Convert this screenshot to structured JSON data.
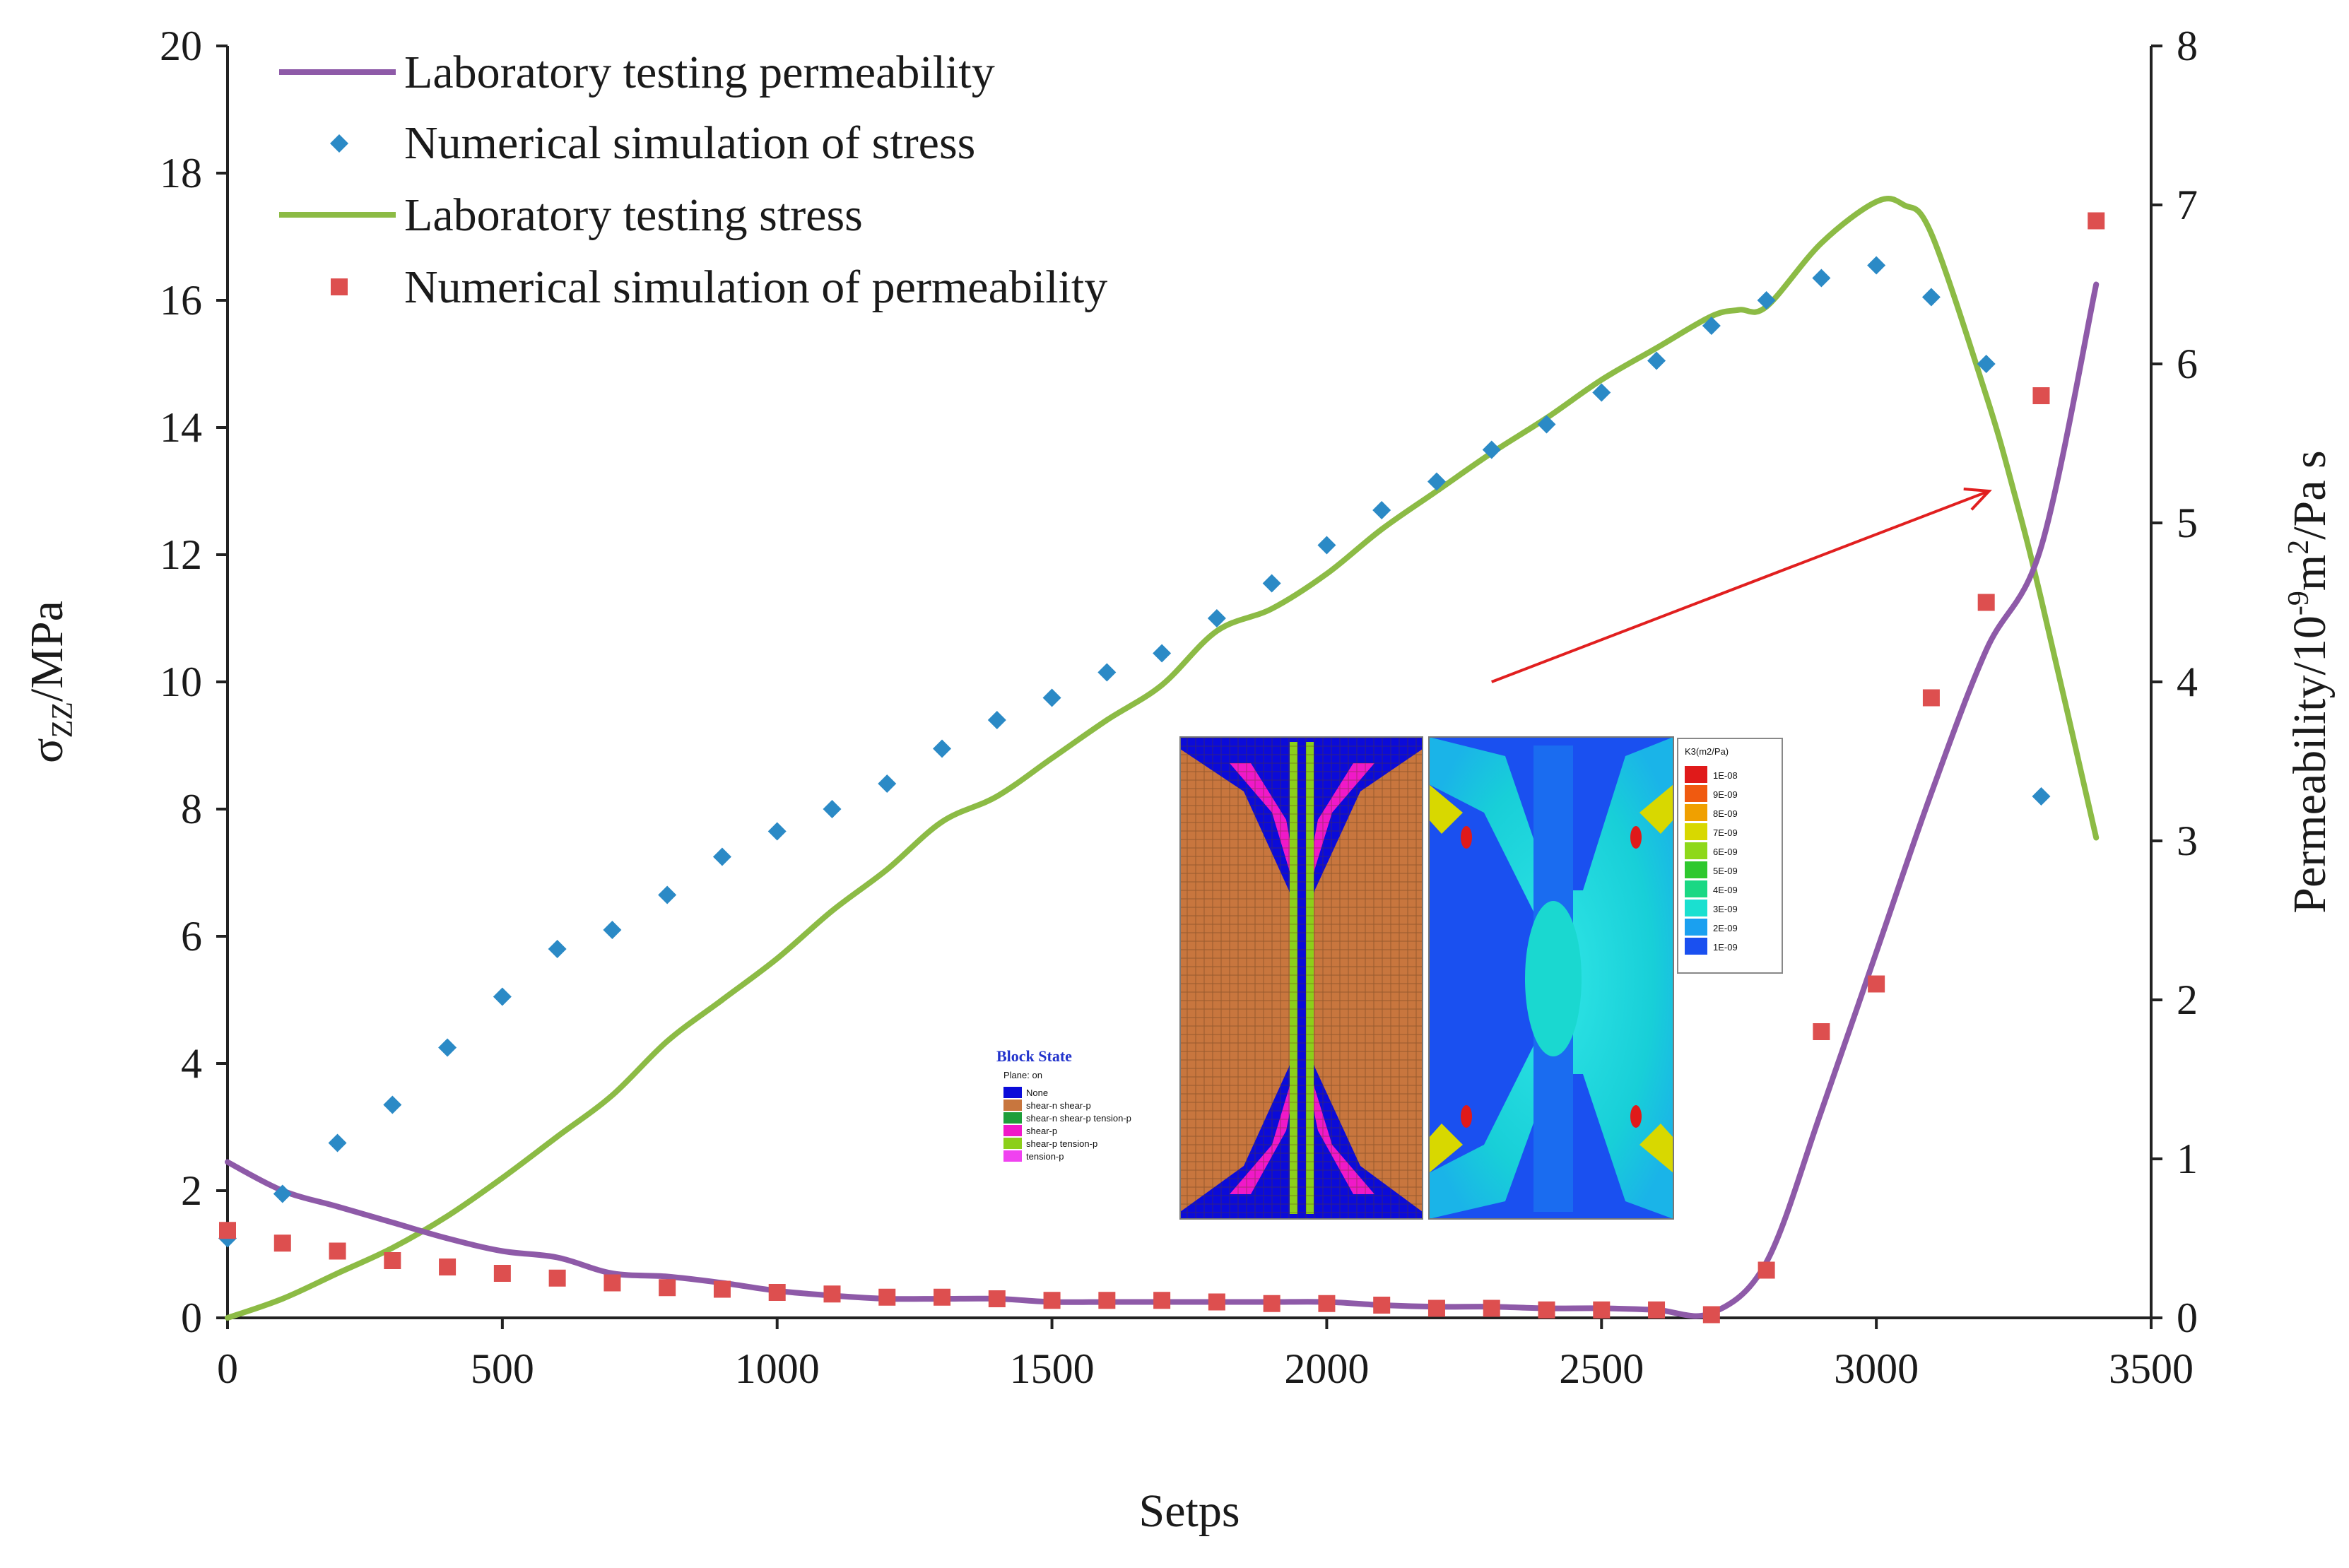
{
  "chart_data": {
    "type": "line",
    "title": "",
    "xlabel": "Setps",
    "ylabel_left": "σZZ/MPa",
    "ylabel_left_main": "σ",
    "ylabel_left_sub": "ZZ",
    "ylabel_left_unit": "/MPa",
    "ylabel_right": "Permeability/10-9m2/Pa s",
    "ylabel_right_parts": [
      "Permeability/10",
      "-9",
      "m",
      "2",
      "/Pa s"
    ],
    "xlim": [
      0,
      3500
    ],
    "ylim_left": [
      0,
      20
    ],
    "ylim_right": [
      0,
      8
    ],
    "x_ticks": [
      "0",
      "500",
      "1000",
      "1500",
      "2000",
      "2500",
      "3000",
      "3500"
    ],
    "y_left_ticks": [
      "0",
      "2",
      "4",
      "6",
      "8",
      "10",
      "12",
      "14",
      "16",
      "18",
      "20"
    ],
    "y_right_ticks": [
      "0",
      "1",
      "2",
      "3",
      "4",
      "5",
      "6",
      "7",
      "8"
    ],
    "grid": false,
    "legend_position": "top-left",
    "colors": {
      "lab_permeability": "#8e5aa8",
      "sim_stress": "#2b8ac6",
      "lab_stress": "#8cbb45",
      "sim_permeability": "#dd4f4f",
      "arrow": "#e11f1f"
    },
    "series": [
      {
        "name": "Laboratory testing permeability",
        "kind": "line",
        "axis": "right",
        "x": [
          0,
          100,
          200,
          300,
          400,
          500,
          600,
          700,
          800,
          900,
          1000,
          1100,
          1200,
          1300,
          1400,
          1500,
          1600,
          1700,
          1800,
          1900,
          2000,
          2100,
          2200,
          2300,
          2400,
          2500,
          2600,
          2700,
          2800,
          2900,
          3000,
          3100,
          3200,
          3300,
          3400
        ],
        "values": [
          0.98,
          0.8,
          0.7,
          0.6,
          0.5,
          0.42,
          0.38,
          0.28,
          0.26,
          0.22,
          0.17,
          0.14,
          0.12,
          0.12,
          0.12,
          0.1,
          0.1,
          0.1,
          0.1,
          0.1,
          0.1,
          0.08,
          0.07,
          0.07,
          0.06,
          0.06,
          0.05,
          0.03,
          0.35,
          1.3,
          2.3,
          3.3,
          4.2,
          4.85,
          6.5
        ]
      },
      {
        "name": "Numerical simulation of stress",
        "kind": "marker",
        "marker": "diamond",
        "axis": "left",
        "x": [
          0,
          100,
          200,
          300,
          400,
          500,
          600,
          700,
          800,
          900,
          1000,
          1100,
          1200,
          1300,
          1400,
          1500,
          1600,
          1700,
          1800,
          1900,
          2000,
          2100,
          2200,
          2300,
          2400,
          2500,
          2600,
          2700,
          2800,
          2900,
          3000,
          3100,
          3200,
          3300
        ],
        "values": [
          1.25,
          1.95,
          2.75,
          3.35,
          4.25,
          5.05,
          5.8,
          6.1,
          6.65,
          7.25,
          7.65,
          8.0,
          8.4,
          8.95,
          9.4,
          9.75,
          10.15,
          10.45,
          11.0,
          11.55,
          12.15,
          12.7,
          13.15,
          13.65,
          14.05,
          14.55,
          15.05,
          15.6,
          16.0,
          16.35,
          16.55,
          16.05,
          15.0,
          8.2
        ]
      },
      {
        "name": "Laboratory testing stress",
        "kind": "line",
        "axis": "left",
        "x": [
          0,
          100,
          200,
          300,
          400,
          500,
          600,
          700,
          800,
          900,
          1000,
          1100,
          1200,
          1300,
          1400,
          1500,
          1600,
          1700,
          1800,
          1900,
          2000,
          2100,
          2200,
          2300,
          2400,
          2500,
          2600,
          2700,
          2750,
          2800,
          2900,
          3000,
          3050,
          3100,
          3200,
          3250,
          3300,
          3400
        ],
        "values": [
          0.0,
          0.3,
          0.7,
          1.1,
          1.6,
          2.2,
          2.85,
          3.5,
          4.35,
          5.0,
          5.65,
          6.4,
          7.05,
          7.8,
          8.2,
          8.8,
          9.4,
          9.95,
          10.8,
          11.15,
          11.7,
          12.4,
          13.0,
          13.6,
          14.15,
          14.75,
          15.25,
          15.75,
          15.85,
          15.9,
          16.9,
          17.55,
          17.5,
          17.05,
          14.5,
          13.0,
          11.3,
          7.55
        ]
      },
      {
        "name": "Numerical simulation of permeability",
        "kind": "marker",
        "marker": "square",
        "axis": "right",
        "x": [
          0,
          100,
          200,
          300,
          400,
          500,
          600,
          700,
          800,
          900,
          1000,
          1100,
          1200,
          1300,
          1400,
          1500,
          1600,
          1700,
          1800,
          1900,
          2000,
          2100,
          2200,
          2300,
          2400,
          2500,
          2600,
          2700,
          2800,
          2900,
          3000,
          3100,
          3200,
          3300,
          3400
        ],
        "values": [
          0.55,
          0.47,
          0.42,
          0.36,
          0.32,
          0.28,
          0.25,
          0.22,
          0.19,
          0.18,
          0.16,
          0.15,
          0.13,
          0.13,
          0.12,
          0.11,
          0.11,
          0.11,
          0.1,
          0.09,
          0.09,
          0.08,
          0.06,
          0.06,
          0.05,
          0.05,
          0.05,
          0.02,
          0.3,
          1.8,
          2.1,
          3.9,
          4.5,
          5.8,
          6.9
        ]
      }
    ],
    "annotation": {
      "arrow": {
        "from_data": [
          2300,
          10.0
        ],
        "to_data": [
          3205,
          13.0
        ],
        "axis": "left"
      }
    }
  },
  "inset": {
    "block_state_legend": {
      "title": "Block State",
      "subtitle": "Plane: on",
      "items": [
        {
          "label": "None",
          "color": "#0b0bd9"
        },
        {
          "label": "shear-n shear-p",
          "color": "#c8763e"
        },
        {
          "label": "shear-n shear-p tension-p",
          "color": "#1e9e3a"
        },
        {
          "label": "shear-p",
          "color": "#f019c8"
        },
        {
          "label": "shear-p tension-p",
          "color": "#8ccf1a"
        },
        {
          "label": "tension-p",
          "color": "#f042f0"
        }
      ]
    },
    "permeability_legend": {
      "title": "K3(m2/Pa)",
      "items": [
        {
          "label": "1E-08",
          "color": "#e01a1a"
        },
        {
          "label": "9E-09",
          "color": "#f05a10"
        },
        {
          "label": "8E-09",
          "color": "#f0a000"
        },
        {
          "label": "7E-09",
          "color": "#d8d800"
        },
        {
          "label": "6E-09",
          "color": "#8ed81a"
        },
        {
          "label": "5E-09",
          "color": "#2ec82e"
        },
        {
          "label": "4E-09",
          "color": "#1ad884"
        },
        {
          "label": "3E-09",
          "color": "#1ae0d0"
        },
        {
          "label": "2E-09",
          "color": "#1aa0f0"
        },
        {
          "label": "1E-09",
          "color": "#1a50f0"
        }
      ]
    }
  }
}
